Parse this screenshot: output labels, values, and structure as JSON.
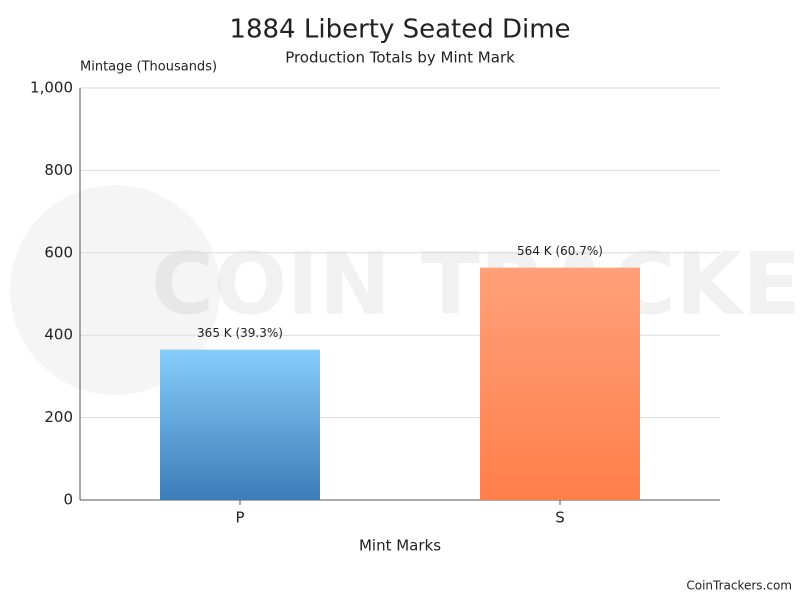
{
  "chart_data": {
    "type": "bar",
    "title": "1884 Liberty Seated Dime",
    "subtitle": "Production Totals by Mint Mark",
    "y_label": "Mintage (Thousands)",
    "x_label": "Mint Marks",
    "categories": [
      "P",
      "S"
    ],
    "values": [
      365,
      564
    ],
    "value_labels": [
      "365 K (39.3%)",
      "564 K (60.7%)"
    ],
    "colors": [
      {
        "top": "#87cefa",
        "bottom": "#3d7cb8"
      },
      {
        "top": "#ffa07a",
        "bottom": "#ff7f4a"
      }
    ],
    "ylim": [
      0,
      1000
    ],
    "yticks": [
      0,
      200,
      400,
      600,
      800,
      {
        "value": 1000,
        "label": "1,000"
      }
    ],
    "grid": true,
    "watermark": "COIN TRACKERS",
    "credit": "CoinTrackers.com"
  }
}
